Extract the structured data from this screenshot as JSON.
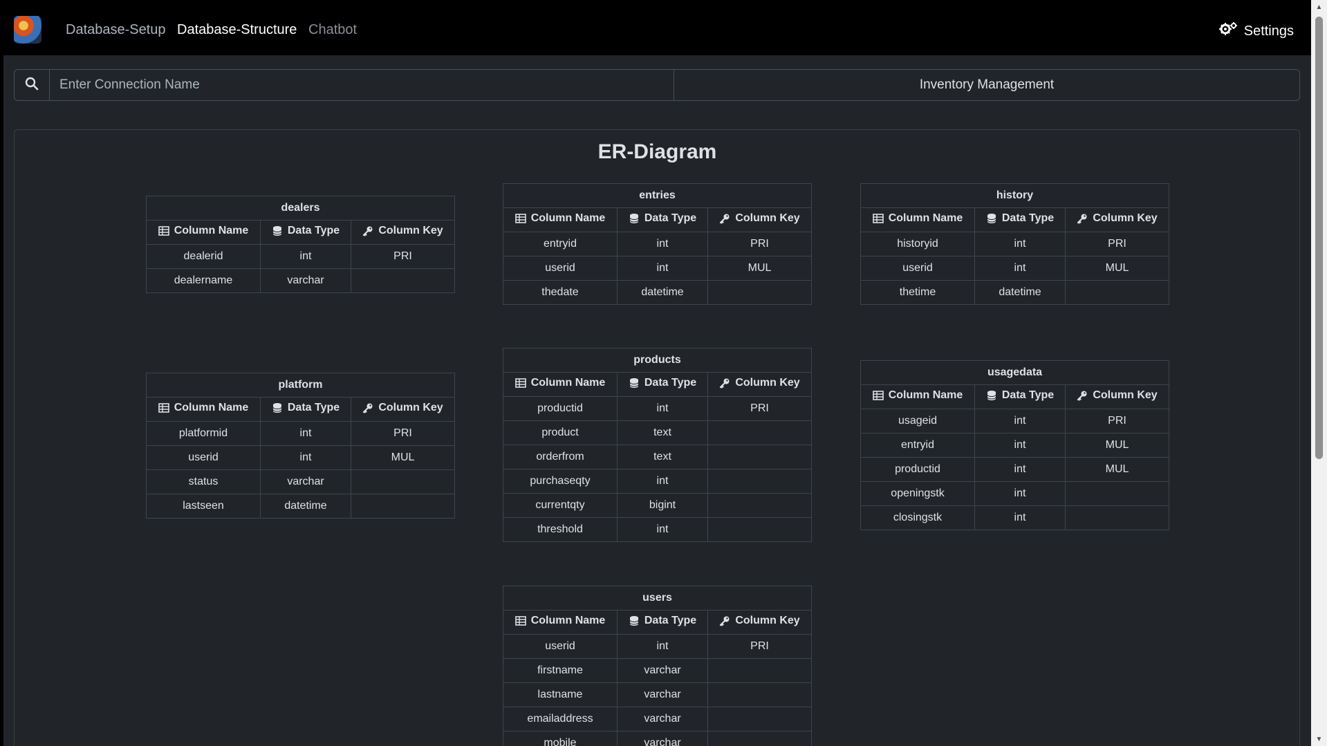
{
  "nav": {
    "links": [
      "Database-Setup",
      "Database-Structure",
      "Chatbot"
    ],
    "settings_label": "Settings"
  },
  "search": {
    "placeholder": "Enter Connection Name",
    "database_name": "Inventory Management"
  },
  "diagram": {
    "title": "ER-Diagram",
    "headers": [
      "Column Name",
      "Data Type",
      "Column Key"
    ],
    "tables": [
      {
        "name": "dealers",
        "rows": [
          [
            "dealerid",
            "int",
            "PRI"
          ],
          [
            "dealername",
            "varchar",
            ""
          ]
        ]
      },
      {
        "name": "entries",
        "rows": [
          [
            "entryid",
            "int",
            "PRI"
          ],
          [
            "userid",
            "int",
            "MUL"
          ],
          [
            "thedate",
            "datetime",
            ""
          ]
        ]
      },
      {
        "name": "history",
        "rows": [
          [
            "historyid",
            "int",
            "PRI"
          ],
          [
            "userid",
            "int",
            "MUL"
          ],
          [
            "thetime",
            "datetime",
            ""
          ]
        ]
      },
      {
        "name": "platform",
        "rows": [
          [
            "platformid",
            "int",
            "PRI"
          ],
          [
            "userid",
            "int",
            "MUL"
          ],
          [
            "status",
            "varchar",
            ""
          ],
          [
            "lastseen",
            "datetime",
            ""
          ]
        ]
      },
      {
        "name": "products",
        "rows": [
          [
            "productid",
            "int",
            "PRI"
          ],
          [
            "product",
            "text",
            ""
          ],
          [
            "orderfrom",
            "text",
            ""
          ],
          [
            "purchaseqty",
            "int",
            ""
          ],
          [
            "currentqty",
            "bigint",
            ""
          ],
          [
            "threshold",
            "int",
            ""
          ]
        ]
      },
      {
        "name": "usagedata",
        "rows": [
          [
            "usageid",
            "int",
            "PRI"
          ],
          [
            "entryid",
            "int",
            "MUL"
          ],
          [
            "productid",
            "int",
            "MUL"
          ],
          [
            "openingstk",
            "int",
            ""
          ],
          [
            "closingstk",
            "int",
            ""
          ]
        ]
      },
      {
        "name": "users",
        "rows": [
          [
            "userid",
            "int",
            "PRI"
          ],
          [
            "firstname",
            "varchar",
            ""
          ],
          [
            "lastname",
            "varchar",
            ""
          ],
          [
            "emailaddress",
            "varchar",
            ""
          ],
          [
            "mobile",
            "varchar",
            ""
          ]
        ]
      }
    ]
  },
  "icons": {
    "logo": "dragon-logo",
    "settings": "gears-icon",
    "search": "search-icon",
    "column_name": "table-icon",
    "data_type": "database-icon",
    "column_key": "key-icon"
  },
  "colors": {
    "navbar": "#000000",
    "background": "#212529",
    "border": "#3f454c",
    "active_link": "#ffffff",
    "muted_link": "#adb5bd"
  }
}
